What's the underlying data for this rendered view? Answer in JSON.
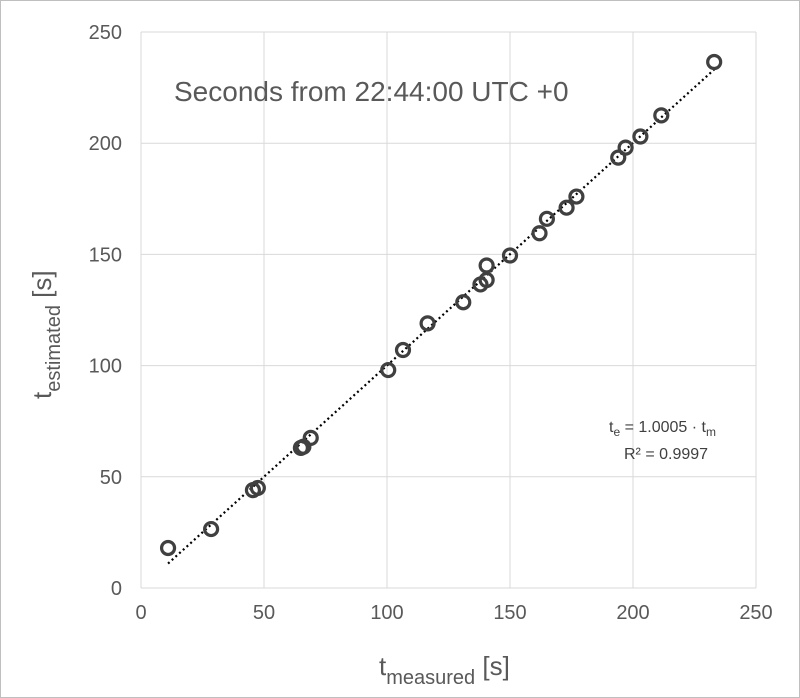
{
  "chart_data": {
    "type": "scatter",
    "title": "Seconds from 22:44:00 UTC +0",
    "xlabel": {
      "main": "t",
      "sub": "measured",
      "unit": " [s]"
    },
    "ylabel": {
      "main": "t",
      "sub": "estimated",
      "unit": " [s]"
    },
    "xlim": [
      0,
      250
    ],
    "ylim": [
      0,
      250
    ],
    "xticks": [
      "0",
      "50",
      "100",
      "150",
      "200",
      "250"
    ],
    "yticks": [
      "0",
      "50",
      "100",
      "150",
      "200",
      "250"
    ],
    "grid": true,
    "legend": "none",
    "marker_color": "#404040",
    "trendline": {
      "style": "dotted",
      "slope": 1.0005,
      "x_range": [
        11,
        233
      ]
    },
    "annotation": {
      "line1_a": "t",
      "line1_a_sub": "e",
      "line1_b": " = 1.0005 · t",
      "line1_b_sub": "m",
      "line2": "R² = 0.9997"
    },
    "points": [
      [
        11,
        18
      ],
      [
        28.5,
        26.5
      ],
      [
        45.5,
        44
      ],
      [
        47.5,
        45
      ],
      [
        65,
        63
      ],
      [
        66,
        63.5
      ],
      [
        69,
        67.5
      ],
      [
        100.5,
        98
      ],
      [
        106.5,
        107
      ],
      [
        116.5,
        119
      ],
      [
        131,
        128.5
      ],
      [
        138,
        136.5
      ],
      [
        140.5,
        138.5
      ],
      [
        140.5,
        145
      ],
      [
        150,
        149.5
      ],
      [
        162,
        159.5
      ],
      [
        165,
        166
      ],
      [
        173,
        171
      ],
      [
        177,
        176
      ],
      [
        194,
        193.5
      ],
      [
        197,
        198
      ],
      [
        203,
        203
      ],
      [
        211.5,
        212.5
      ],
      [
        233,
        236.5
      ]
    ]
  }
}
